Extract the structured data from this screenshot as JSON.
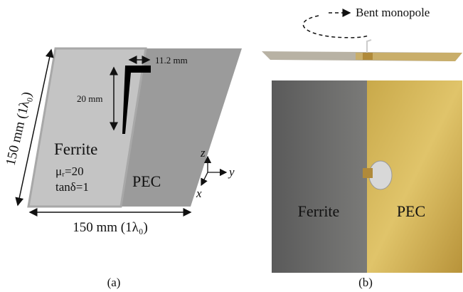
{
  "figure": {
    "panel_a": {
      "dim_width": "11.2 mm",
      "dim_height": "20 mm",
      "side_label": "150 mm (1λ₀)",
      "bottom_label": "150 mm (1λ₀)",
      "ferrite_label": "Ferrite",
      "mu_label": "μᵣ=20",
      "tan_label": "tanδ=1",
      "pec_label": "PEC",
      "axis_z": "z",
      "axis_y": "y",
      "axis_x": "x",
      "caption": "(a)"
    },
    "panel_b": {
      "callout": "Bent monopole",
      "ferrite_label": "Ferrite",
      "pec_label": "PEC",
      "caption": "(b)"
    }
  }
}
